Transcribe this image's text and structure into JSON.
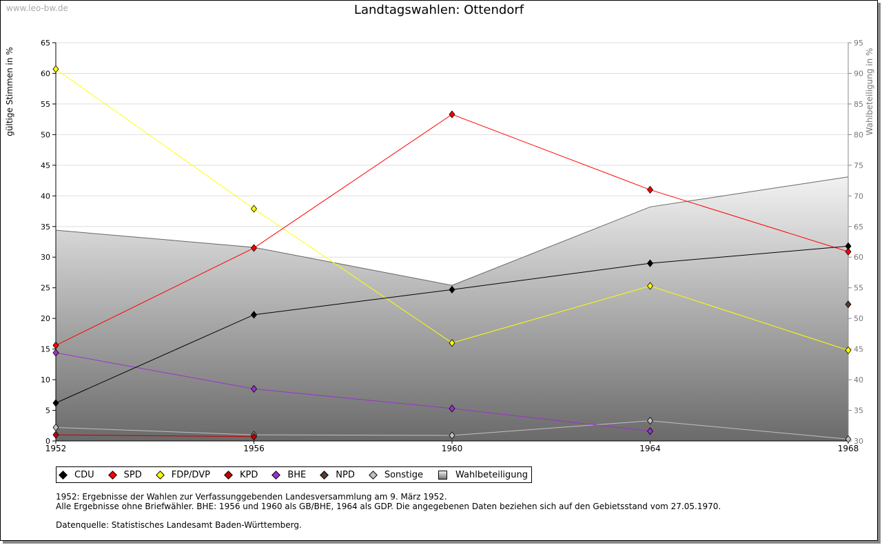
{
  "watermark": "www.leo-bw.de",
  "chart_data": {
    "type": "line",
    "title": "Landtagswahlen: Ottendorf",
    "ylabel": "gültige Stimmen in %",
    "y2label": "Wahlbeteiligung in %",
    "x": [
      "1952",
      "1956",
      "1960",
      "1964",
      "1968"
    ],
    "ylim": [
      0,
      65
    ],
    "y2lim": [
      30,
      95
    ],
    "yticks": [
      0,
      5,
      10,
      15,
      20,
      25,
      30,
      35,
      40,
      45,
      50,
      55,
      60,
      65
    ],
    "y2ticks": [
      30,
      35,
      40,
      45,
      50,
      55,
      60,
      65,
      70,
      75,
      80,
      85,
      90,
      95
    ],
    "series": [
      {
        "name": "CDU",
        "color": "#000000",
        "values": [
          6.2,
          20.6,
          24.7,
          29.0,
          31.8
        ]
      },
      {
        "name": "SPD",
        "color": "#ff0000",
        "values": [
          15.6,
          31.5,
          53.3,
          41.0,
          30.9
        ]
      },
      {
        "name": "FDP/DVP",
        "color": "#ffff00",
        "values": [
          60.7,
          37.9,
          16.0,
          25.3,
          14.8
        ]
      },
      {
        "name": "KPD",
        "color": "#c00000",
        "values": [
          1.0,
          0.7,
          null,
          null,
          null
        ]
      },
      {
        "name": "BHE",
        "color": "#9933cc",
        "values": [
          14.4,
          8.5,
          5.3,
          1.6,
          null
        ]
      },
      {
        "name": "NPD",
        "color": "#5a3a2a",
        "values": [
          null,
          null,
          null,
          null,
          22.3
        ]
      },
      {
        "name": "Sonstige",
        "color": "#c0c0c0",
        "values": [
          2.2,
          1.0,
          0.9,
          3.3,
          0.3
        ]
      }
    ],
    "area": {
      "name": "Wahlbeteiligung",
      "axis": "right",
      "values": [
        64.4,
        61.6,
        55.4,
        68.2,
        73.1
      ]
    },
    "legend": "bottom-left"
  },
  "notes": [
    "1952: Ergebnisse der Wahlen zur Verfassunggebenden Landesversammlung am 9. März 1952.",
    "Alle Ergebnisse ohne Briefwähler. BHE: 1956 und 1960 als GB/BHE, 1964 als GDP. Die angegebenen Daten beziehen sich auf den Gebietsstand vom 27.05.1970.",
    "",
    "Datenquelle: Statistisches Landesamt Baden-Württemberg."
  ]
}
